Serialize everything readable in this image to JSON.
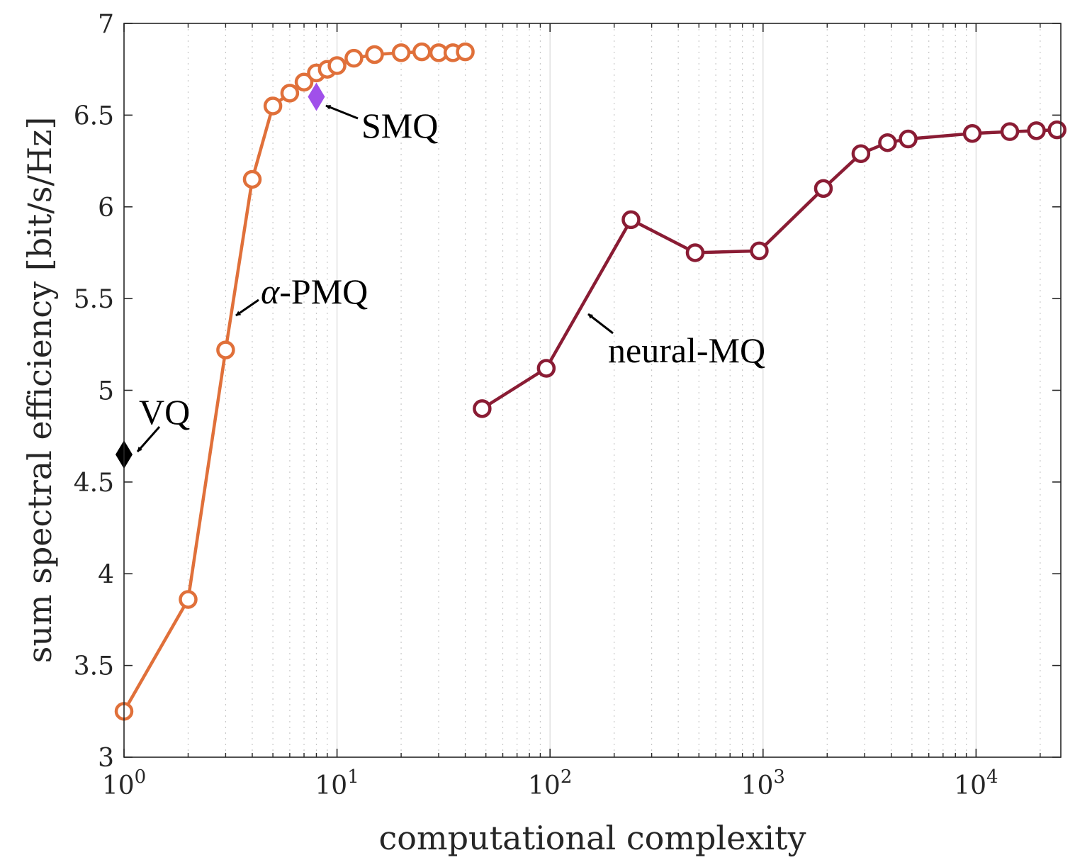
{
  "chart_data": {
    "type": "line",
    "title": "",
    "xlabel": "computational complexity",
    "ylabel": "sum spectral efficiency [bit/s/Hz]",
    "xscale": "log",
    "xlim": [
      1,
      25000
    ],
    "ylim": [
      3,
      7
    ],
    "grid": true,
    "x_tick_labels": [
      {
        "value": 1,
        "base": "10",
        "exp": "0"
      },
      {
        "value": 10,
        "base": "10",
        "exp": "1"
      },
      {
        "value": 100,
        "base": "10",
        "exp": "2"
      },
      {
        "value": 1000,
        "base": "10",
        "exp": "3"
      },
      {
        "value": 10000,
        "base": "10",
        "exp": "4"
      }
    ],
    "y_ticks": [
      3,
      3.5,
      4,
      4.5,
      5,
      5.5,
      6,
      6.5,
      7
    ],
    "y_tick_labels": [
      "3",
      "3.5",
      "4",
      "4.5",
      "5",
      "5.5",
      "6",
      "6.5",
      "7"
    ],
    "series": [
      {
        "name": "α-PMQ",
        "label_prefix": "α",
        "label_suffix": "-PMQ",
        "color": "#e0703a",
        "marker": "open-circle",
        "x": [
          1,
          2,
          3,
          4,
          5,
          6,
          7,
          8,
          9,
          10,
          12,
          15,
          20,
          25,
          30,
          35,
          40
        ],
        "y": [
          3.25,
          3.86,
          5.22,
          6.15,
          6.55,
          6.62,
          6.68,
          6.73,
          6.75,
          6.77,
          6.81,
          6.83,
          6.84,
          6.845,
          6.84,
          6.84,
          6.845
        ]
      },
      {
        "name": "neural-MQ",
        "color": "#8a1c34",
        "marker": "open-circle",
        "x": [
          48,
          96,
          240,
          480,
          960,
          1920,
          2880,
          3840,
          4800,
          9600,
          14400,
          19200,
          24000
        ],
        "y": [
          4.9,
          5.12,
          5.93,
          5.75,
          5.76,
          6.1,
          6.29,
          6.35,
          6.37,
          6.4,
          6.41,
          6.415,
          6.42
        ]
      },
      {
        "name": "SMQ",
        "color": "#a050ea",
        "marker": "diamond",
        "x": [
          8
        ],
        "y": [
          6.6
        ]
      },
      {
        "name": "VQ",
        "color": "#000000",
        "marker": "diamond",
        "x": [
          1
        ],
        "y": [
          4.65
        ]
      }
    ],
    "annotations": [
      {
        "text": "VQ",
        "target_x": 1,
        "target_y": 4.65
      },
      {
        "text": "SMQ",
        "target_x": 8,
        "target_y": 6.6
      },
      {
        "text": "α-PMQ",
        "target_x": 3.2,
        "target_y": 5.4
      },
      {
        "text": "neural-MQ",
        "target_x": 140,
        "target_y": 5.42
      }
    ]
  }
}
